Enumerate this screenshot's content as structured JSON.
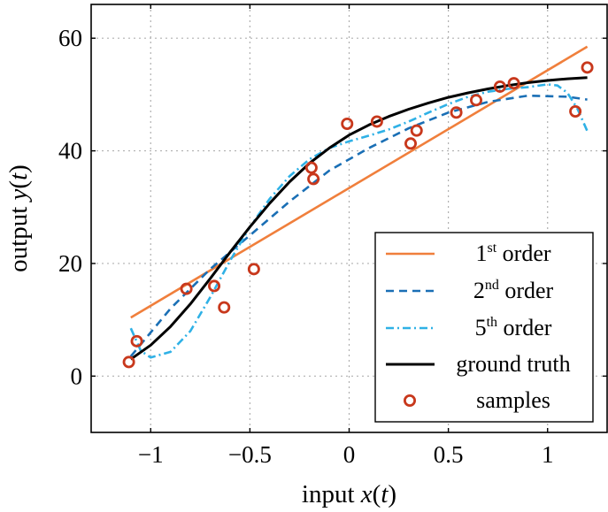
{
  "chart_data": {
    "type": "line",
    "xlabel": "input x(t)",
    "xlabel_parts": {
      "pre": "input ",
      "var": "x",
      "open": "(",
      "arg": "t",
      "close": ")"
    },
    "ylabel": "output y(t)",
    "ylabel_parts": {
      "pre": "output ",
      "var": "y",
      "open": "(",
      "arg": "t",
      "close": ")"
    },
    "xlim": [
      -1.3,
      1.3
    ],
    "ylim": [
      -10,
      66
    ],
    "xticks": [
      -1,
      -0.5,
      0,
      0.5,
      1
    ],
    "xtick_labels": [
      "−1",
      "−0.5",
      "0",
      "0.5",
      "1"
    ],
    "yticks": [
      0,
      20,
      40,
      60
    ],
    "ytick_labels": [
      "0",
      "20",
      "40",
      "60"
    ],
    "grid": true,
    "legend_position": "bottom-right",
    "colors": {
      "first_order": "#f07f3c",
      "second_order": "#1a6fb5",
      "fifth_order": "#2fb1e6",
      "ground_truth": "#000000",
      "samples": "#c8381c"
    },
    "series": [
      {
        "key": "first_order",
        "name": "1st order",
        "label_num": "1",
        "label_sup": "st",
        "label_rest": " order",
        "style": "solid",
        "x": [
          -1.1,
          1.2
        ],
        "y": [
          10.4,
          58.5
        ]
      },
      {
        "key": "second_order",
        "name": "2nd order",
        "label_num": "2",
        "label_sup": "nd",
        "label_rest": " order",
        "style": "dashed",
        "x": [
          -1.1,
          -0.9,
          -0.7,
          -0.5,
          -0.3,
          -0.1,
          0.1,
          0.3,
          0.5,
          0.7,
          0.9,
          1.1,
          1.2
        ],
        "y": [
          3.5,
          12.0,
          19.0,
          25.0,
          31.0,
          36.5,
          40.5,
          44.0,
          46.8,
          48.7,
          49.8,
          49.6,
          49.1
        ]
      },
      {
        "key": "fifth_order",
        "name": "5th order",
        "label_num": "5",
        "label_sup": "th",
        "label_rest": " order",
        "style": "dashdot",
        "x": [
          -1.1,
          -1.05,
          -1.0,
          -0.9,
          -0.8,
          -0.7,
          -0.6,
          -0.5,
          -0.4,
          -0.3,
          -0.2,
          -0.1,
          0.0,
          0.1,
          0.2,
          0.3,
          0.4,
          0.5,
          0.6,
          0.7,
          0.8,
          0.9,
          1.0,
          1.05,
          1.1,
          1.15,
          1.2
        ],
        "y": [
          8.5,
          4.5,
          3.3,
          4.3,
          8.0,
          14.0,
          20.5,
          26.5,
          31.5,
          35.5,
          38.5,
          40.5,
          41.7,
          42.7,
          43.8,
          45.2,
          46.8,
          48.3,
          49.6,
          50.5,
          51.0,
          51.3,
          51.8,
          51.6,
          50.3,
          47.5,
          43.5
        ]
      },
      {
        "key": "ground_truth",
        "name": "ground truth",
        "style": "solid",
        "x": [
          -1.1,
          -1.0,
          -0.9,
          -0.8,
          -0.7,
          -0.6,
          -0.5,
          -0.4,
          -0.3,
          -0.2,
          -0.1,
          0.0,
          0.1,
          0.2,
          0.3,
          0.4,
          0.5,
          0.6,
          0.7,
          0.8,
          0.9,
          1.0,
          1.1,
          1.2
        ],
        "y": [
          3.0,
          5.5,
          8.8,
          12.8,
          17.3,
          22.0,
          26.5,
          30.7,
          34.5,
          37.8,
          40.5,
          42.8,
          44.6,
          46.1,
          47.4,
          48.5,
          49.5,
          50.3,
          51.0,
          51.6,
          52.1,
          52.5,
          52.8,
          53.0
        ]
      }
    ],
    "samples": {
      "key": "samples",
      "name": "samples",
      "x": [
        -1.11,
        -1.07,
        -0.82,
        -0.68,
        -0.63,
        -0.48,
        -0.19,
        -0.18,
        -0.01,
        0.14,
        0.31,
        0.34,
        0.54,
        0.64,
        0.76,
        0.83,
        1.14,
        1.2
      ],
      "y": [
        2.5,
        6.2,
        15.5,
        16.0,
        12.2,
        19.0,
        37.0,
        35.0,
        44.8,
        45.2,
        41.3,
        43.6,
        46.8,
        49.0,
        51.4,
        52.0,
        47.0,
        54.8
      ]
    }
  }
}
